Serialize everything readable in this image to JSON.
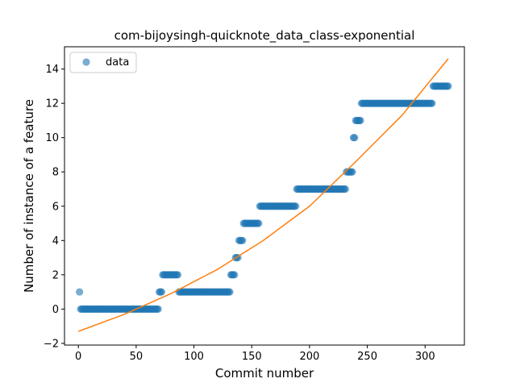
{
  "chart_data": {
    "type": "scatter",
    "title": "com-bijoysingh-quicknote_data_class-exponential",
    "xlabel": "Commit number",
    "ylabel": "Number of instance of a feature",
    "xlim": [
      -12,
      334
    ],
    "ylim": [
      -2.1,
      15.3
    ],
    "xticks": [
      0,
      50,
      100,
      150,
      200,
      250,
      300
    ],
    "yticks": [
      -2,
      0,
      2,
      4,
      6,
      8,
      10,
      12,
      14
    ],
    "ytick_labels": [
      "−2",
      "0",
      "2",
      "4",
      "6",
      "8",
      "10",
      "12",
      "14"
    ],
    "grid": false,
    "legend": {
      "position": "top-left",
      "entries": [
        "data"
      ]
    },
    "colors": {
      "data": "#1f77b4",
      "fit": "#ff7f0e"
    },
    "series": [
      {
        "name": "data",
        "kind": "scatter",
        "segments": [
          {
            "x_start": 1,
            "x_end": 1,
            "y": 1
          },
          {
            "x_start": 2,
            "x_end": 69,
            "y": 0
          },
          {
            "x_start": 70,
            "x_end": 72,
            "y": 1
          },
          {
            "x_start": 73,
            "x_end": 86,
            "y": 2
          },
          {
            "x_start": 87,
            "x_end": 131,
            "y": 1
          },
          {
            "x_start": 132,
            "x_end": 135,
            "y": 2
          },
          {
            "x_start": 136,
            "x_end": 138,
            "y": 3
          },
          {
            "x_start": 139,
            "x_end": 142,
            "y": 4
          },
          {
            "x_start": 143,
            "x_end": 156,
            "y": 5
          },
          {
            "x_start": 157,
            "x_end": 188,
            "y": 6
          },
          {
            "x_start": 189,
            "x_end": 231,
            "y": 7
          },
          {
            "x_start": 232,
            "x_end": 237,
            "y": 8
          },
          {
            "x_start": 238,
            "x_end": 239,
            "y": 10
          },
          {
            "x_start": 240,
            "x_end": 244,
            "y": 11
          },
          {
            "x_start": 245,
            "x_end": 306,
            "y": 12
          },
          {
            "x_start": 307,
            "x_end": 320,
            "y": 13
          }
        ]
      },
      {
        "kind": "line",
        "x": [
          0,
          40,
          80,
          120,
          160,
          200,
          240,
          280,
          320
        ],
        "y": [
          -1.3,
          -0.3,
          0.9,
          2.3,
          4.0,
          6.0,
          8.6,
          11.3,
          14.6
        ]
      }
    ]
  }
}
